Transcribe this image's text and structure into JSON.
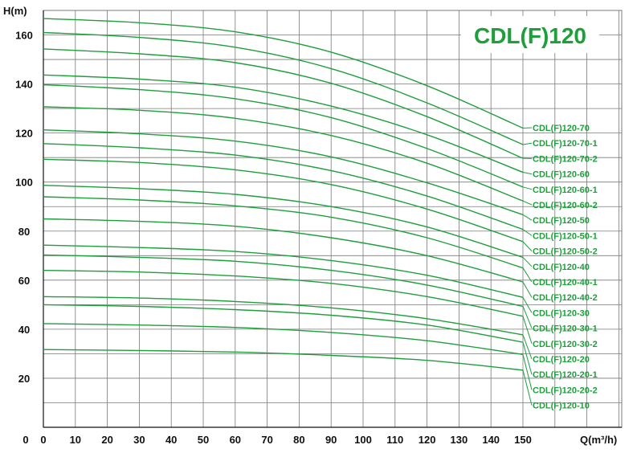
{
  "chart_data": {
    "type": "line",
    "title": "CDL(F)120",
    "ylabel": "H(m)",
    "xlabel": "Q(m³/h)",
    "xlim": [
      0,
      150
    ],
    "ylim": [
      0,
      170
    ],
    "x_ticks": [
      "0",
      "10",
      "20",
      "30",
      "40",
      "50",
      "60",
      "70",
      "80",
      "90",
      "100",
      "110",
      "120",
      "130",
      "140",
      "150"
    ],
    "y_ticks": [
      "20",
      "40",
      "60",
      "80",
      "100",
      "120",
      "140",
      "160"
    ],
    "origin_label": "0",
    "grid": true,
    "x": [
      0,
      30,
      60,
      90,
      120,
      150
    ],
    "series": [
      {
        "name": "CDL(F)120-70",
        "values": [
          166.7,
          165.0,
          161.3,
          153.0,
          139.3,
          122.0
        ]
      },
      {
        "name": "CDL(F)120-70-1",
        "values": [
          161.0,
          159.0,
          155.0,
          146.3,
          132.3,
          115.3
        ]
      },
      {
        "name": "CDL(F)120-70-2",
        "values": [
          154.3,
          152.3,
          148.7,
          140.3,
          126.7,
          109.7
        ]
      },
      {
        "name": "CDL(F)120-60",
        "values": [
          143.7,
          142.0,
          138.7,
          131.0,
          119.3,
          104.0
        ]
      },
      {
        "name": "CDL(F)120-60-1",
        "values": [
          139.7,
          137.7,
          134.0,
          126.3,
          113.7,
          98.0
        ]
      },
      {
        "name": "CDL(F)120-60-2",
        "values": [
          130.7,
          129.3,
          126.0,
          119.0,
          107.7,
          92.3
        ]
      },
      {
        "name": "CDL(F)120-50",
        "values": [
          121.3,
          119.7,
          116.7,
          110.3,
          99.7,
          86.7
        ]
      },
      {
        "name": "CDL(F)120-50-1",
        "values": [
          115.7,
          114.0,
          111.0,
          104.7,
          94.3,
          80.7
        ]
      },
      {
        "name": "CDL(F)120-50-2",
        "values": [
          109.3,
          108.0,
          105.0,
          99.0,
          89.0,
          75.7
        ]
      },
      {
        "name": "CDL(F)120-40",
        "values": [
          98.7,
          97.3,
          95.0,
          90.0,
          81.7,
          69.3
        ]
      },
      {
        "name": "CDL(F)120-40-1",
        "values": [
          94.0,
          92.7,
          90.3,
          85.7,
          77.3,
          65.0
        ]
      },
      {
        "name": "CDL(F)120-40-2",
        "values": [
          85.0,
          84.0,
          82.0,
          77.3,
          70.0,
          59.3
        ]
      },
      {
        "name": "CDL(F)120-30",
        "values": [
          74.3,
          73.3,
          71.7,
          68.0,
          62.0,
          53.0
        ]
      },
      {
        "name": "CDL(F)120-30-1",
        "values": [
          70.3,
          69.3,
          67.7,
          64.0,
          58.0,
          49.3
        ]
      },
      {
        "name": "CDL(F)120-30-2",
        "values": [
          64.0,
          63.3,
          61.7,
          58.7,
          53.3,
          45.3
        ]
      },
      {
        "name": "CDL(F)120-20",
        "values": [
          53.3,
          52.7,
          51.3,
          48.7,
          44.3,
          37.7
        ]
      },
      {
        "name": "CDL(F)120-20-1",
        "values": [
          50.0,
          49.3,
          48.0,
          45.7,
          41.7,
          34.7
        ]
      },
      {
        "name": "CDL(F)120-20-2",
        "values": [
          42.3,
          41.7,
          40.7,
          38.7,
          35.3,
          29.7
        ]
      },
      {
        "name": "CDL(F)120-10",
        "values": [
          31.7,
          31.3,
          30.7,
          29.3,
          27.3,
          23.3
        ]
      }
    ],
    "colors": {
      "curve": "#1f9e3c",
      "title": "#1f9e3c",
      "label": "#1f9e3c",
      "grid": "#7a7a7a",
      "axis": "#111111"
    }
  }
}
